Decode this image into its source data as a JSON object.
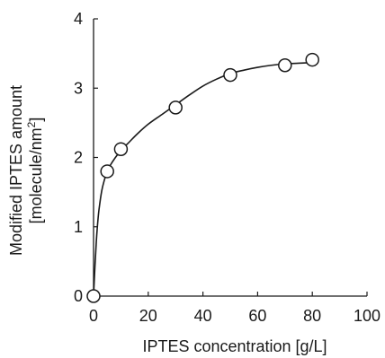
{
  "chart_data": {
    "type": "scatter",
    "title": "",
    "xlabel": "IPTES concentration [g/L]",
    "ylabel_line1": "Modified IPTES amount",
    "ylabel_line2_prefix": "[molecule/nm",
    "ylabel_line2_sup": "2",
    "ylabel_line2_suffix": "]",
    "xlim": [
      0,
      100
    ],
    "ylim": [
      0,
      4
    ],
    "xticks": [
      0,
      20,
      40,
      60,
      80,
      100
    ],
    "yticks": [
      0,
      1,
      2,
      3,
      4
    ],
    "grid": false,
    "legend": "none",
    "series": [
      {
        "marker": "open-circle",
        "x": [
          0,
          5,
          10,
          30,
          50,
          70,
          80
        ],
        "y": [
          0.0,
          1.8,
          2.12,
          2.72,
          3.19,
          3.33,
          3.41
        ]
      }
    ],
    "fit_curve": {
      "type": "line",
      "x": [
        0,
        0.5,
        1,
        1.5,
        2,
        3,
        4,
        5,
        6,
        8,
        10,
        13,
        16,
        20,
        25,
        30,
        35,
        40,
        45,
        50,
        55,
        60,
        65,
        70,
        75,
        80
      ],
      "y": [
        0,
        0.42,
        0.78,
        1.05,
        1.25,
        1.52,
        1.68,
        1.8,
        1.88,
        2.0,
        2.1,
        2.22,
        2.34,
        2.48,
        2.62,
        2.76,
        2.9,
        3.03,
        3.13,
        3.21,
        3.26,
        3.3,
        3.33,
        3.35,
        3.36,
        3.37
      ]
    },
    "colors": {
      "axis": "#1a1a1a",
      "marker_fill": "#ffffff",
      "marker_stroke": "#1a1a1a",
      "curve": "#1a1a1a"
    }
  }
}
